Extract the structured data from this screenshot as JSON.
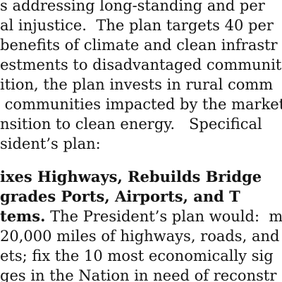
{
  "document": {
    "paragraph_lines": [
      "s addressing long-standing and per",
      "al injustice.  The plan targets 40 per",
      "benefits of climate and clean infrastr",
      "estments to disadvantaged communit",
      "ition, the plan invests in rural comm",
      " communities impacted by the market",
      "nsition to clean energy.   Specifical",
      "sident’s plan:"
    ],
    "heading_lines": [
      "ixes Highways, Rebuilds Bridge",
      "grades Ports, Airports, and T"
    ],
    "heading_tail": "tems.",
    "body_after_heading": " The President’s plan would:  m",
    "body_lines": [
      "20,000 miles of highways, roads, and",
      "ets; fix the 10 most economically sig",
      "ges in the Nation in need of reconstr"
    ]
  }
}
